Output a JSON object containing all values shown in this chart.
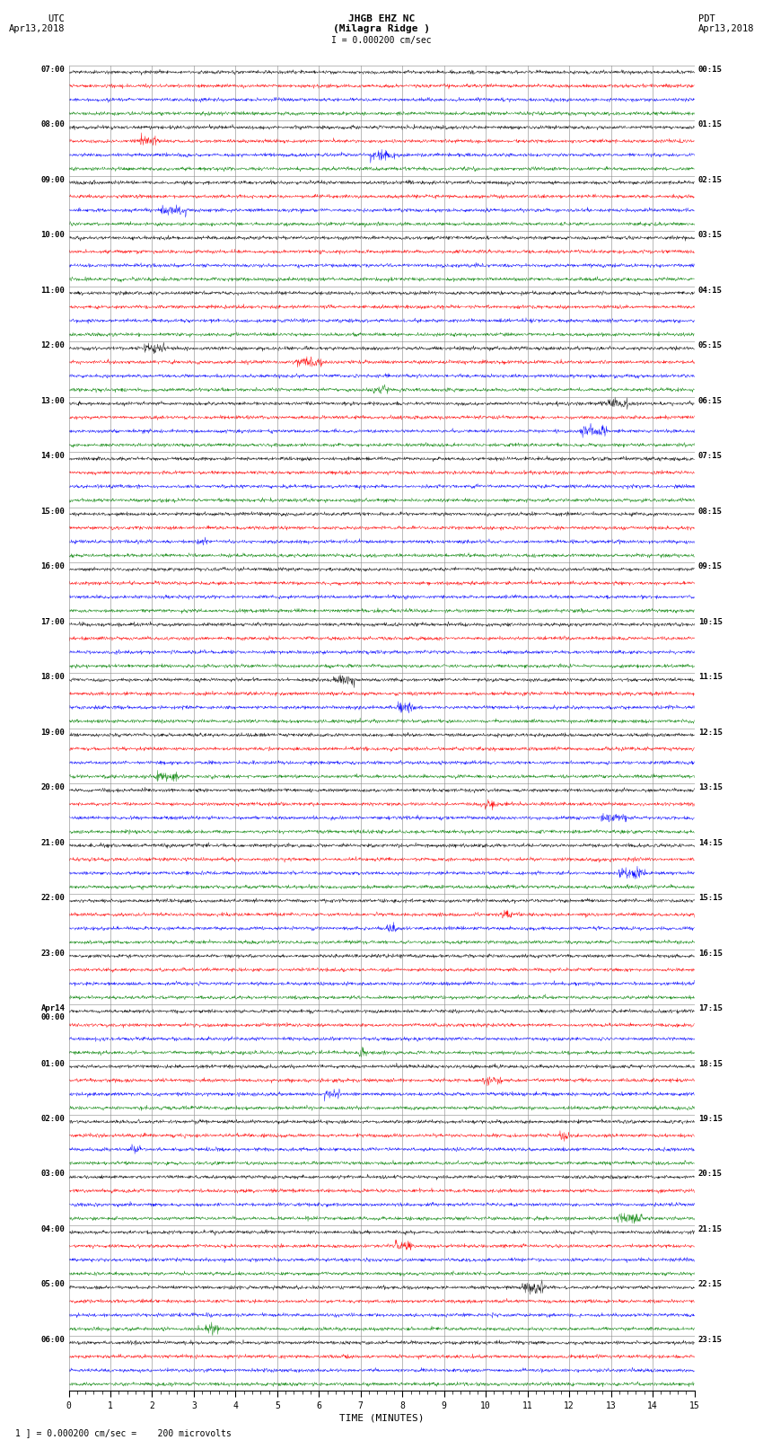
{
  "title_line1": "JHGB EHZ NC",
  "title_line2": "(Milagra Ridge )",
  "scale_label": "I = 0.000200 cm/sec",
  "left_label": "UTC",
  "right_label": "PDT",
  "left_date": "Apr13,2018",
  "right_date": "Apr13,2018",
  "xlabel": "TIME (MINUTES)",
  "footer": "1 ] = 0.000200 cm/sec =    200 microvolts",
  "utc_hour_labels": [
    "07:00",
    "08:00",
    "09:00",
    "10:00",
    "11:00",
    "12:00",
    "13:00",
    "14:00",
    "15:00",
    "16:00",
    "17:00",
    "18:00",
    "19:00",
    "20:00",
    "21:00",
    "22:00",
    "23:00",
    "Apr14\n00:00",
    "01:00",
    "02:00",
    "03:00",
    "04:00",
    "05:00",
    "06:00"
  ],
  "pdt_hour_labels": [
    "00:15",
    "01:15",
    "02:15",
    "03:15",
    "04:15",
    "05:15",
    "06:15",
    "07:15",
    "08:15",
    "09:15",
    "10:15",
    "11:15",
    "12:15",
    "13:15",
    "14:15",
    "15:15",
    "16:15",
    "17:15",
    "18:15",
    "19:15",
    "20:15",
    "21:15",
    "22:15",
    "23:15"
  ],
  "n_hours": 24,
  "n_traces_per_hour": 4,
  "x_min": 0,
  "x_max": 15,
  "x_ticks": [
    0,
    1,
    2,
    3,
    4,
    5,
    6,
    7,
    8,
    9,
    10,
    11,
    12,
    13,
    14,
    15
  ],
  "colors": [
    "black",
    "red",
    "blue",
    "green"
  ],
  "bg_color": "white",
  "grid_color": "#888888",
  "noise_scale": 0.12,
  "seed": 42
}
